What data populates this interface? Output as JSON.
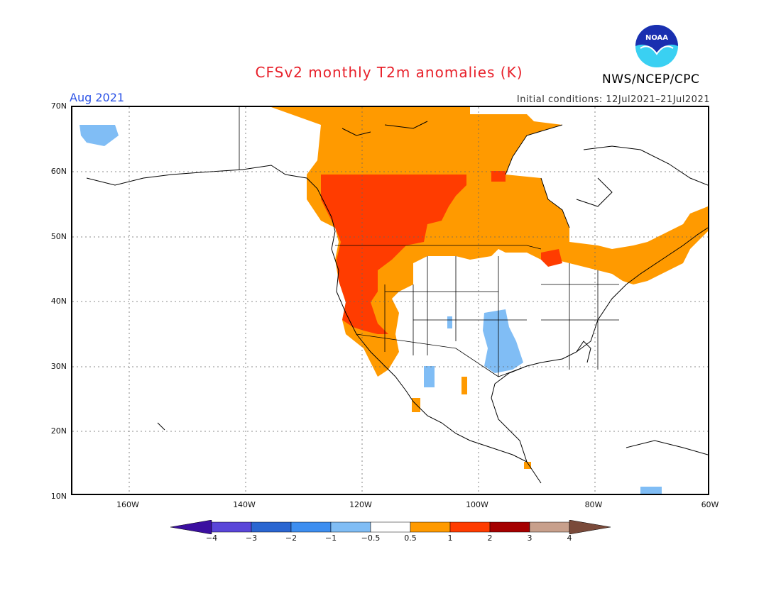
{
  "header": {
    "title": "CFSv2 monthly T2m anomalies (K)",
    "month": "Aug 2021",
    "initial_conditions": "Initial conditions: 12Jul2021–21Jul2021",
    "agency": "NWS/NCEP/CPC",
    "logo_text": "NOAA"
  },
  "map": {
    "region": "North America",
    "lat_labels": [
      "70N",
      "60N",
      "50N",
      "40N",
      "30N",
      "20N",
      "10N"
    ],
    "lon_labels": [
      "160W",
      "140W",
      "120W",
      "100W",
      "80W",
      "60W"
    ],
    "grid": true
  },
  "colorbar": {
    "labels": [
      "−4",
      "−3",
      "−2",
      "−1",
      "−0.5",
      "0.5",
      "1",
      "2",
      "3",
      "4"
    ],
    "colors": [
      "#3b0fa0",
      "#5a46d9",
      "#2a66d1",
      "#3d8ef0",
      "#80bdf5",
      "#ffffff",
      "#ff9a00",
      "#ff3c00",
      "#a50000",
      "#c8a08c",
      "#7a4a3a"
    ]
  },
  "anomaly_colors": {
    "warm_1": "#ff9a00",
    "warm_2": "#ff3c00",
    "cool_1": "#80bdf5"
  }
}
